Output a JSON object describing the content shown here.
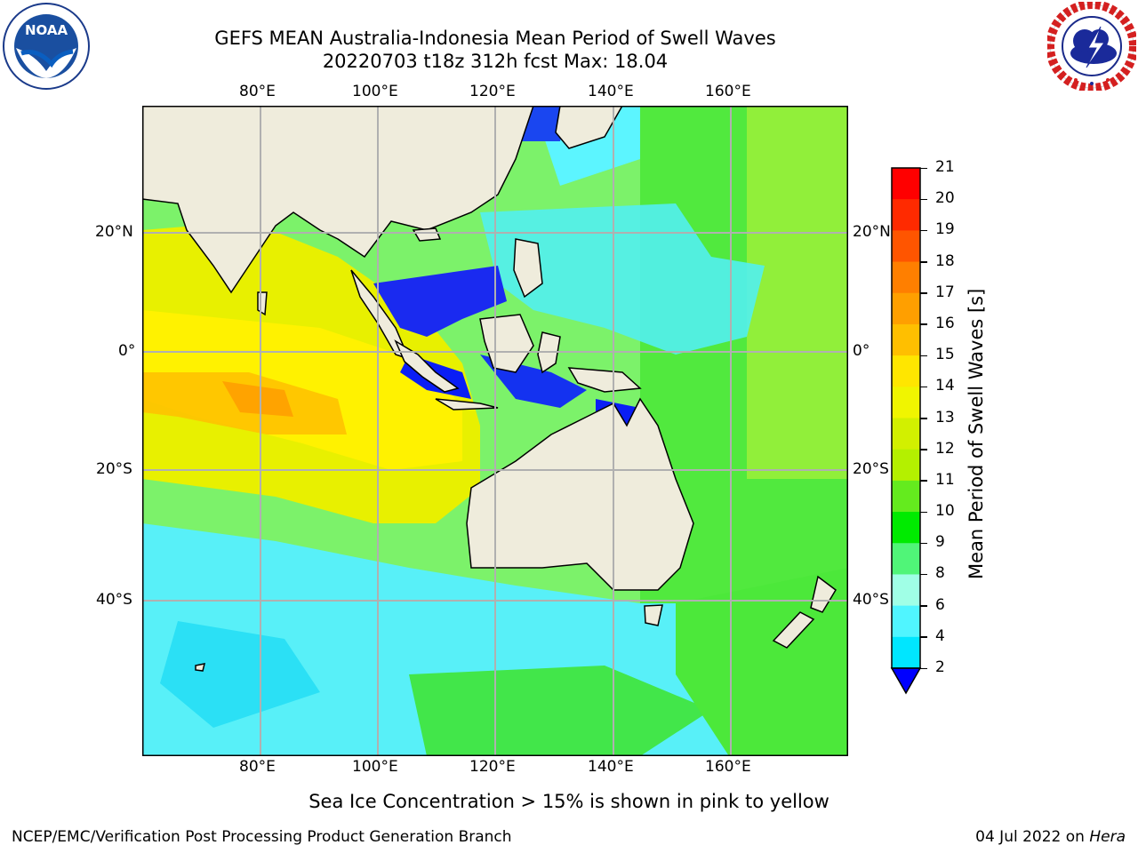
{
  "header": {
    "title_line1": "GEFS MEAN Australia-Indonesia Mean Period of Swell Waves",
    "title_line2": "20220703 t18z 312h fcst   Max: 18.04"
  },
  "logos": {
    "left": {
      "text": "NOAA",
      "ring_text": "NATIONAL OCEANIC AND ATMOSPHERIC ADMINISTRATION",
      "bottom_text": "U.S. DEPARTMENT OF COMMERCE"
    },
    "right": {
      "ring_text": "NATIONAL WEATHER SERVICE"
    }
  },
  "map": {
    "lon_ticks": [
      "80°E",
      "100°E",
      "120°E",
      "140°E",
      "160°E"
    ],
    "lat_ticks": [
      "20°N",
      "0°",
      "20°S",
      "40°S"
    ],
    "colors": {
      "land": "#efecdc",
      "grid": "#b0b0b0"
    }
  },
  "colorbar": {
    "title": "Mean Period of Swell Waves [s]",
    "labels": [
      "21",
      "20",
      "19",
      "18",
      "17",
      "16",
      "15",
      "14",
      "13",
      "12",
      "11",
      "10",
      "9",
      "8",
      "6",
      "4",
      "2"
    ],
    "colors": [
      "#ff0000",
      "#ff2a00",
      "#ff5500",
      "#ff7f00",
      "#ff9f00",
      "#ffbf00",
      "#ffe600",
      "#f0f500",
      "#d2f000",
      "#b4f000",
      "#64eb1e",
      "#00eb00",
      "#50f578",
      "#a0ffe6",
      "#50f5ff",
      "#00e6ff",
      "#00a0ff",
      "#0032ff"
    ],
    "extend_color": "#0000ff"
  },
  "note": "Sea Ice Concentration > 15% is shown in pink to yellow",
  "footer": {
    "left": "NCEP/EMC/Verification Post Processing Product Generation Branch",
    "date": "04 Jul 2022 on",
    "host": "Hera"
  }
}
